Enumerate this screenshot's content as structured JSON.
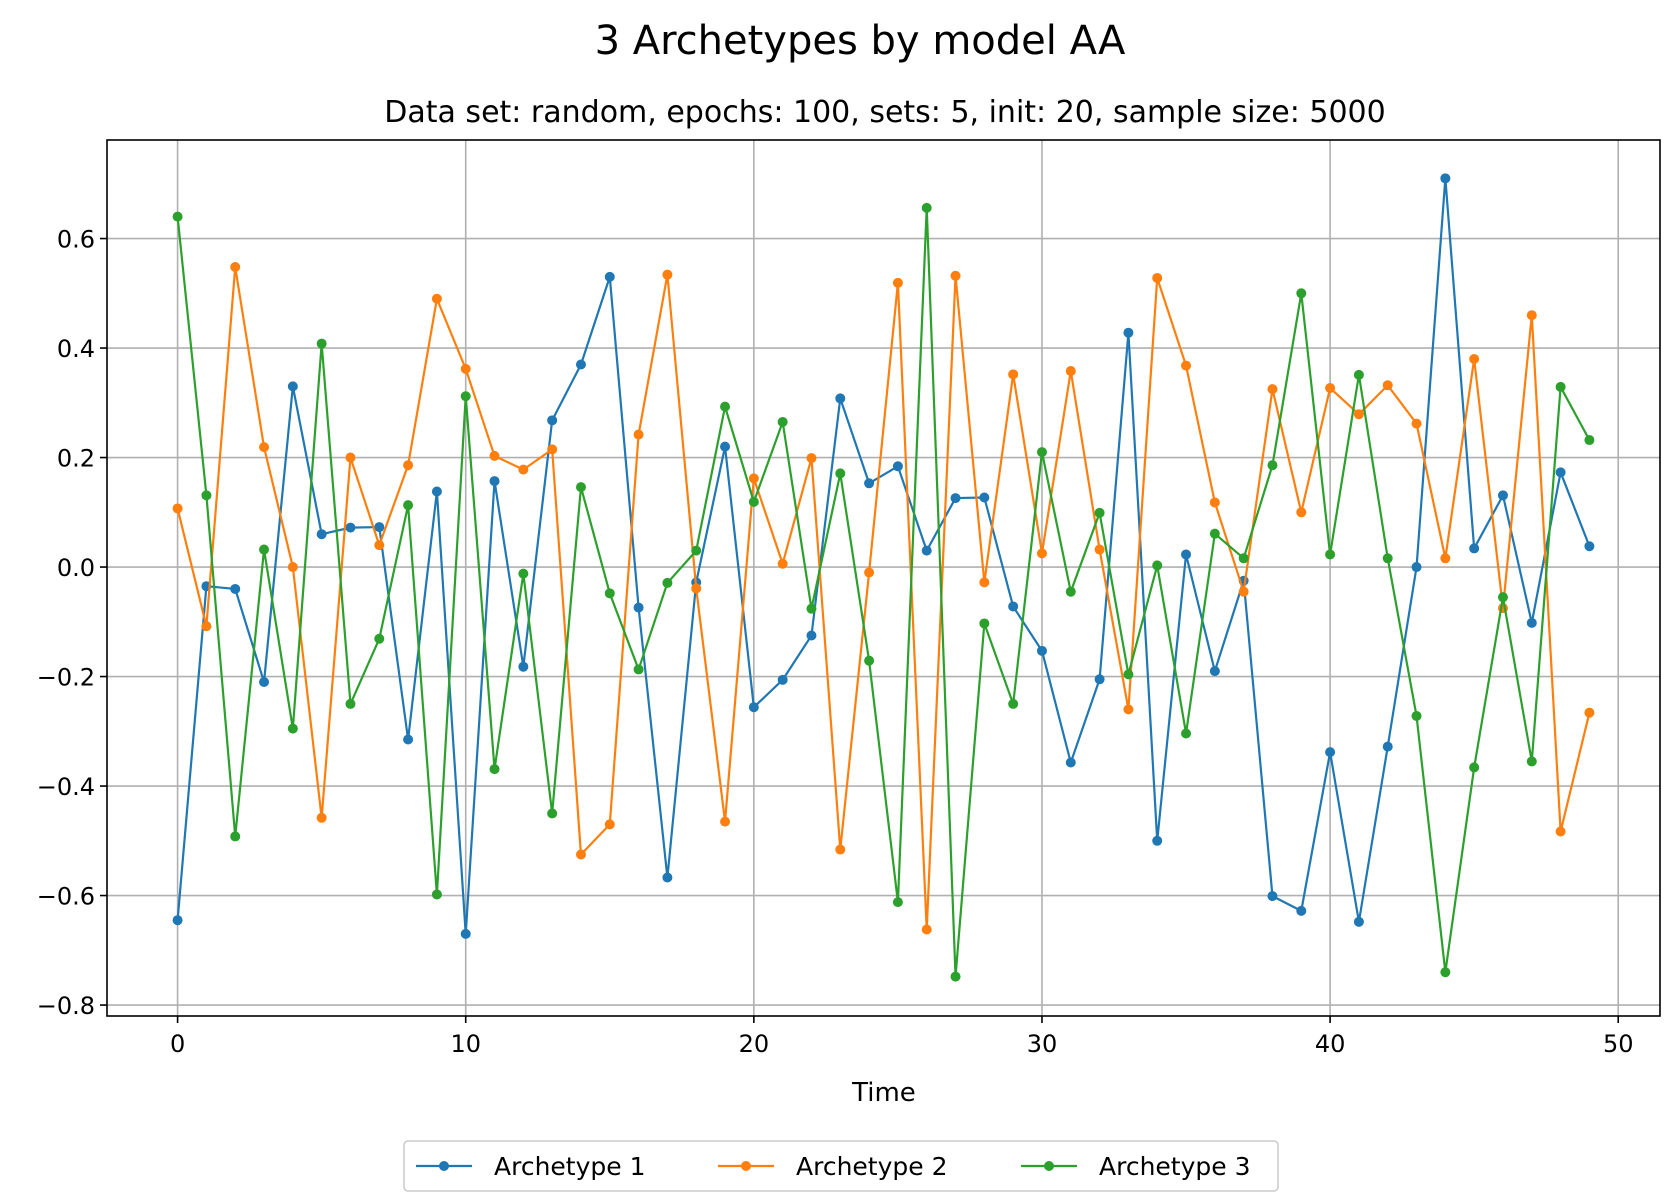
{
  "chart_data": {
    "type": "line",
    "title": "3 Archetypes by model AA",
    "subtitle": "Data set: random, epochs: 100, sets: 5, init: 20, sample size: 5000",
    "xlabel": "Time",
    "ylabel": "",
    "xlim": [
      -2.45,
      51.45
    ],
    "ylim": [
      -0.82,
      0.78
    ],
    "xticks": [
      0,
      10,
      20,
      30,
      40,
      50
    ],
    "xtick_labels": [
      "0",
      "10",
      "20",
      "30",
      "40",
      "50"
    ],
    "yticks": [
      -0.8,
      -0.6,
      -0.4,
      -0.2,
      0.0,
      0.2,
      0.4,
      0.6
    ],
    "ytick_labels": [
      "−0.8",
      "−0.6",
      "−0.4",
      "−0.2",
      "0.0",
      "0.2",
      "0.4",
      "0.6"
    ],
    "grid": true,
    "legend_position": "bottom-center",
    "x": [
      0,
      1,
      2,
      3,
      4,
      5,
      6,
      7,
      8,
      9,
      10,
      11,
      12,
      13,
      14,
      15,
      16,
      17,
      18,
      19,
      20,
      21,
      22,
      23,
      24,
      25,
      26,
      27,
      28,
      29,
      30,
      31,
      32,
      33,
      34,
      35,
      36,
      37,
      38,
      39,
      40,
      41,
      42,
      43,
      44,
      45,
      46,
      47,
      48,
      49
    ],
    "series": [
      {
        "name": "Archetype 1",
        "color": "#1f77b4",
        "values": [
          -0.645,
          -0.035,
          -0.04,
          -0.21,
          0.33,
          0.06,
          0.072,
          0.073,
          -0.315,
          0.138,
          -0.67,
          0.157,
          -0.182,
          0.268,
          0.37,
          0.53,
          -0.074,
          -0.567,
          -0.028,
          0.22,
          -0.256,
          -0.206,
          -0.125,
          0.308,
          0.153,
          0.184,
          0.03,
          0.126,
          0.127,
          -0.072,
          -0.153,
          -0.357,
          -0.205,
          0.428,
          -0.5,
          0.023,
          -0.19,
          -0.025,
          -0.601,
          -0.628,
          -0.338,
          -0.648,
          -0.328,
          0.0,
          0.71,
          0.034,
          0.131,
          -0.102,
          0.173,
          0.038
        ]
      },
      {
        "name": "Archetype 2",
        "color": "#ff7f0e",
        "values": [
          0.107,
          -0.108,
          0.548,
          0.219,
          0.0,
          -0.458,
          0.2,
          0.04,
          0.186,
          0.49,
          0.362,
          0.203,
          0.178,
          0.215,
          -0.525,
          -0.47,
          0.242,
          0.534,
          -0.039,
          -0.465,
          0.162,
          0.006,
          0.199,
          -0.516,
          -0.01,
          0.519,
          -0.662,
          0.532,
          -0.028,
          0.352,
          0.025,
          0.358,
          0.032,
          -0.26,
          0.528,
          0.368,
          0.118,
          -0.045,
          0.325,
          0.1,
          0.327,
          0.279,
          0.332,
          0.262,
          0.016,
          0.38,
          -0.075,
          0.46,
          -0.483,
          -0.266
        ]
      },
      {
        "name": "Archetype 3",
        "color": "#2ca02c",
        "values": [
          0.64,
          0.131,
          -0.492,
          0.032,
          -0.295,
          0.408,
          -0.25,
          -0.131,
          0.113,
          -0.598,
          0.312,
          -0.369,
          -0.012,
          -0.45,
          0.146,
          -0.048,
          -0.187,
          -0.029,
          0.03,
          0.293,
          0.119,
          0.265,
          -0.076,
          0.171,
          -0.171,
          -0.612,
          0.656,
          -0.748,
          -0.103,
          -0.25,
          0.21,
          -0.045,
          0.099,
          -0.196,
          0.003,
          -0.304,
          0.061,
          0.016,
          0.186,
          0.5,
          0.023,
          0.351,
          0.016,
          -0.272,
          -0.74,
          -0.366,
          -0.055,
          -0.355,
          0.329,
          0.232
        ]
      }
    ]
  }
}
